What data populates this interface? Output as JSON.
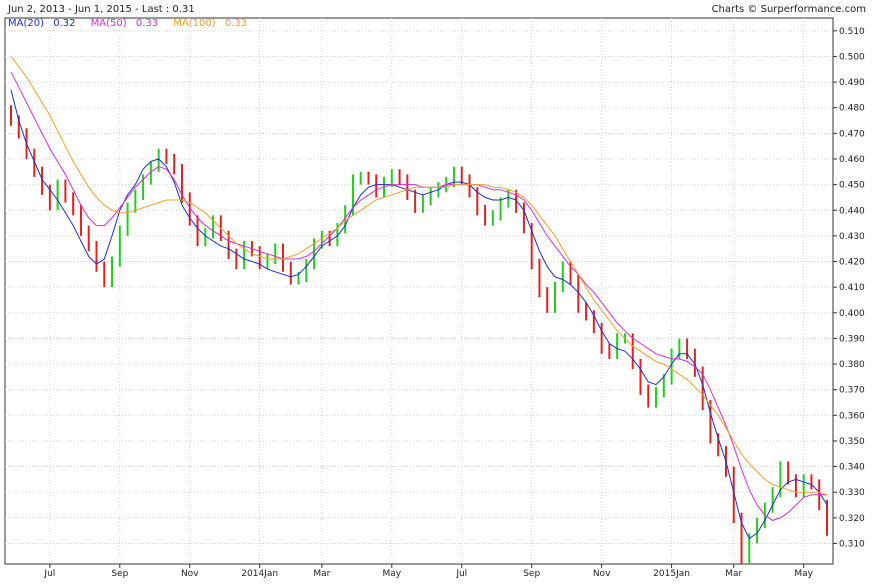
{
  "header": {
    "range_label": "Jun 2, 2013 - Jun 1, 2015 - Last : 0.31",
    "credit": "Charts © Surperformance.com"
  },
  "legend": {
    "items": [
      {
        "name": "MA(20)",
        "value": "0.32",
        "color": "#1f2fc8"
      },
      {
        "name": "MA(50)",
        "value": "0.33",
        "color": "#d62fd6"
      },
      {
        "name": "MA(100)",
        "value": "0.33",
        "color": "#f0a030"
      }
    ]
  },
  "chart_data": {
    "type": "line",
    "ylim": [
      0.302,
      0.515
    ],
    "y_ticks": [
      "0.310",
      "0.320",
      "0.330",
      "0.340",
      "0.350",
      "0.360",
      "0.370",
      "0.380",
      "0.390",
      "0.400",
      "0.410",
      "0.420",
      "0.430",
      "0.440",
      "0.450",
      "0.460",
      "0.470",
      "0.480",
      "0.490",
      "0.500",
      "0.510"
    ],
    "x_ticks": [
      "Jul",
      "Sep",
      "Nov",
      "2014Jan",
      "Mar",
      "May",
      "Jul",
      "Sep",
      "Nov",
      "2015Jan",
      "Mar",
      "May"
    ],
    "x_tick_pos": [
      5,
      14,
      23,
      32,
      40,
      49,
      58,
      67,
      76,
      85,
      93,
      102
    ],
    "x_count": 106,
    "price_colors": {
      "up": "#22cc22",
      "down": "#dd2222"
    },
    "price_close": [
      0.475,
      0.47,
      0.462,
      0.455,
      0.448,
      0.442,
      0.45,
      0.445,
      0.44,
      0.432,
      0.426,
      0.418,
      0.412,
      0.42,
      0.432,
      0.441,
      0.446,
      0.452,
      0.457,
      0.462,
      0.46,
      0.456,
      0.445,
      0.436,
      0.428,
      0.431,
      0.436,
      0.43,
      0.423,
      0.419,
      0.426,
      0.424,
      0.419,
      0.421,
      0.425,
      0.418,
      0.413,
      0.414,
      0.419,
      0.427,
      0.43,
      0.428,
      0.433,
      0.44,
      0.452,
      0.453,
      0.452,
      0.447,
      0.451,
      0.454,
      0.452,
      0.446,
      0.441,
      0.444,
      0.447,
      0.449,
      0.451,
      0.455,
      0.452,
      0.447,
      0.44,
      0.436,
      0.438,
      0.443,
      0.446,
      0.441,
      0.433,
      0.419,
      0.408,
      0.402,
      0.41,
      0.418,
      0.413,
      0.402,
      0.399,
      0.394,
      0.386,
      0.384,
      0.39,
      0.39,
      0.38,
      0.37,
      0.365,
      0.369,
      0.374,
      0.384,
      0.388,
      0.384,
      0.377,
      0.364,
      0.351,
      0.346,
      0.338,
      0.32,
      0.304,
      0.312,
      0.318,
      0.324,
      0.33,
      0.34,
      0.335,
      0.33,
      0.335,
      0.333,
      0.325,
      0.315
    ],
    "series": [
      {
        "name": "MA(20)",
        "color": "#1f2fc8",
        "values": [
          0.487,
          0.475,
          0.466,
          0.459,
          0.452,
          0.448,
          0.444,
          0.439,
          0.434,
          0.428,
          0.422,
          0.419,
          0.421,
          0.43,
          0.44,
          0.446,
          0.45,
          0.456,
          0.459,
          0.46,
          0.457,
          0.451,
          0.442,
          0.437,
          0.433,
          0.43,
          0.428,
          0.426,
          0.425,
          0.423,
          0.421,
          0.42,
          0.419,
          0.417,
          0.416,
          0.415,
          0.414,
          0.415,
          0.418,
          0.422,
          0.426,
          0.428,
          0.43,
          0.434,
          0.441,
          0.446,
          0.449,
          0.45,
          0.45,
          0.45,
          0.449,
          0.448,
          0.447,
          0.446,
          0.447,
          0.448,
          0.45,
          0.451,
          0.451,
          0.45,
          0.447,
          0.445,
          0.444,
          0.444,
          0.445,
          0.444,
          0.44,
          0.432,
          0.424,
          0.418,
          0.414,
          0.413,
          0.411,
          0.408,
          0.404,
          0.399,
          0.393,
          0.388,
          0.386,
          0.385,
          0.382,
          0.378,
          0.373,
          0.372,
          0.375,
          0.38,
          0.384,
          0.384,
          0.38,
          0.372,
          0.361,
          0.351,
          0.342,
          0.33,
          0.318,
          0.312,
          0.314,
          0.319,
          0.325,
          0.331,
          0.334,
          0.335,
          0.334,
          0.333,
          0.33,
          0.325
        ]
      },
      {
        "name": "MA(50)",
        "color": "#d62fd6",
        "values": [
          0.494,
          0.488,
          0.482,
          0.476,
          0.47,
          0.464,
          0.459,
          0.454,
          0.448,
          0.442,
          0.437,
          0.434,
          0.434,
          0.437,
          0.441,
          0.445,
          0.449,
          0.452,
          0.455,
          0.457,
          0.456,
          0.452,
          0.446,
          0.441,
          0.437,
          0.434,
          0.432,
          0.43,
          0.428,
          0.427,
          0.426,
          0.425,
          0.424,
          0.423,
          0.422,
          0.421,
          0.421,
          0.421,
          0.422,
          0.424,
          0.427,
          0.43,
          0.433,
          0.437,
          0.441,
          0.444,
          0.446,
          0.448,
          0.449,
          0.45,
          0.45,
          0.45,
          0.45,
          0.449,
          0.449,
          0.449,
          0.45,
          0.45,
          0.45,
          0.45,
          0.45,
          0.449,
          0.448,
          0.448,
          0.447,
          0.446,
          0.444,
          0.44,
          0.435,
          0.43,
          0.426,
          0.422,
          0.418,
          0.415,
          0.411,
          0.408,
          0.404,
          0.4,
          0.396,
          0.393,
          0.39,
          0.388,
          0.386,
          0.384,
          0.383,
          0.382,
          0.382,
          0.381,
          0.379,
          0.376,
          0.37,
          0.363,
          0.356,
          0.348,
          0.339,
          0.331,
          0.325,
          0.321,
          0.319,
          0.32,
          0.322,
          0.325,
          0.328,
          0.329,
          0.329,
          0.329
        ]
      },
      {
        "name": "MA(100)",
        "color": "#f0a030",
        "values": [
          0.5,
          0.496,
          0.492,
          0.487,
          0.482,
          0.477,
          0.471,
          0.465,
          0.459,
          0.454,
          0.449,
          0.445,
          0.442,
          0.44,
          0.439,
          0.439,
          0.44,
          0.441,
          0.442,
          0.443,
          0.444,
          0.444,
          0.444,
          0.443,
          0.441,
          0.439,
          0.436,
          0.433,
          0.43,
          0.427,
          0.425,
          0.423,
          0.422,
          0.421,
          0.421,
          0.421,
          0.422,
          0.423,
          0.425,
          0.427,
          0.429,
          0.431,
          0.433,
          0.436,
          0.438,
          0.44,
          0.442,
          0.444,
          0.445,
          0.446,
          0.447,
          0.448,
          0.449,
          0.449,
          0.449,
          0.449,
          0.449,
          0.45,
          0.45,
          0.45,
          0.45,
          0.45,
          0.449,
          0.449,
          0.448,
          0.447,
          0.445,
          0.442,
          0.438,
          0.434,
          0.43,
          0.425,
          0.42,
          0.415,
          0.41,
          0.405,
          0.401,
          0.397,
          0.393,
          0.39,
          0.387,
          0.385,
          0.383,
          0.381,
          0.38,
          0.378,
          0.376,
          0.374,
          0.371,
          0.368,
          0.364,
          0.36,
          0.355,
          0.35,
          0.345,
          0.341,
          0.338,
          0.335,
          0.333,
          0.332,
          0.331,
          0.33,
          0.33,
          0.33,
          0.33,
          0.329
        ]
      }
    ]
  }
}
